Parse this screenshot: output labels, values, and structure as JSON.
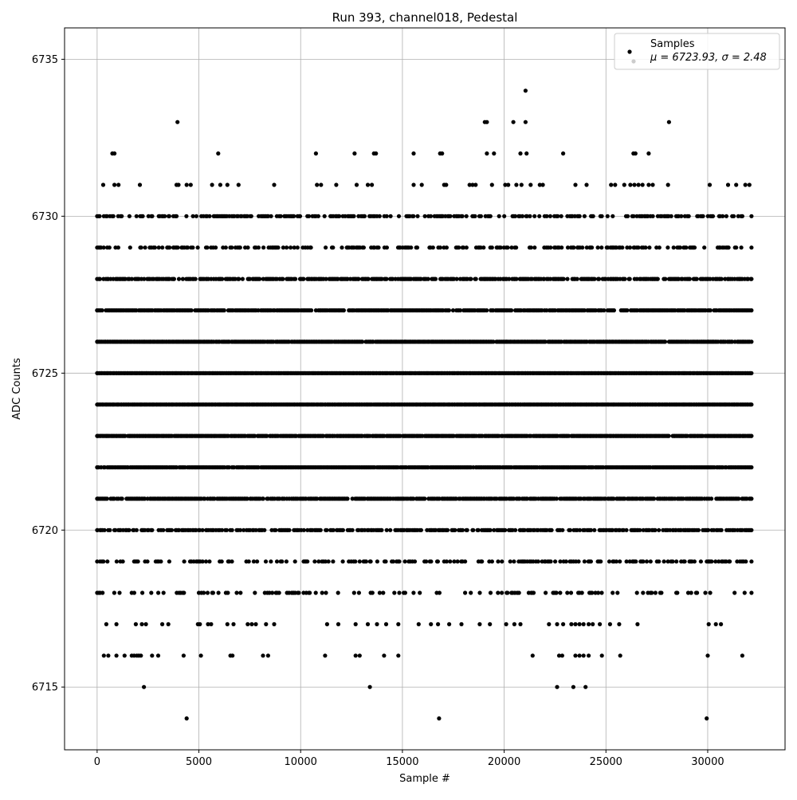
{
  "chart_data": {
    "type": "scatter",
    "title": "Run 393, channel018, Pedestal",
    "xlabel": "Sample #",
    "ylabel": "ADC Counts",
    "xlim": [
      -1600,
      33800
    ],
    "ylim": [
      6713,
      6736
    ],
    "xticks": [
      0,
      5000,
      10000,
      15000,
      20000,
      25000,
      30000
    ],
    "yticks": [
      6715,
      6720,
      6725,
      6730,
      6735
    ],
    "grid": true,
    "legend": {
      "placement": "top-right",
      "entries": [
        {
          "label": "Samples",
          "marker": "dot",
          "color": "#000000"
        },
        {
          "label": "μ = 6723.93, σ = 2.48",
          "marker": "dot",
          "color": "#cccccc"
        }
      ]
    },
    "series": [
      {
        "marker_color": "#000000",
        "x_range": [
          0,
          32150
        ],
        "levels": [
          {
            "y": 6714,
            "x": [
              4400,
              16800,
              29950
            ]
          },
          {
            "y": 6715,
            "x": [
              2300,
              13400,
              22600,
              23400,
              24000
            ]
          },
          {
            "y": 6716,
            "x": [
              330,
              550,
              950,
              1350,
              1700,
              1820,
              1950,
              2050,
              2150,
              2700,
              3000,
              4250,
              5100,
              6550,
              6650,
              8150,
              8400,
              11200,
              12700,
              12900,
              14100,
              14800,
              21400,
              22700,
              22850,
              23500,
              23700,
              23900,
              24150,
              24800,
              25700,
              30000,
              31700
            ]
          },
          {
            "y": 6717,
            "x": [
              450,
              950,
              1900,
              2200,
              2400,
              3200,
              3500,
              4950,
              5050,
              5450,
              5600,
              6400,
              6700,
              7400,
              7600,
              7800,
              8300,
              8700,
              11300,
              11850,
              12700,
              13300,
              13750,
              14200,
              14800,
              15800,
              16400,
              16750,
              17300,
              17900,
              18800,
              19300,
              20100,
              20500,
              20800,
              22200,
              22600,
              22900,
              23300,
              23500,
              23700,
              23900,
              24150,
              24350,
              24700,
              25200,
              25650,
              26550,
              30050,
              30400,
              30650
            ]
          },
          {
            "y": 6718,
            "pattern": "sparse",
            "density": 0.25
          },
          {
            "y": 6719,
            "pattern": "sparse",
            "density": 0.35
          },
          {
            "y": 6720,
            "pattern": "dense",
            "density": 0.6
          },
          {
            "y": 6721,
            "pattern": "dense",
            "density": 0.85
          },
          {
            "y": 6722,
            "pattern": "dense",
            "density": 0.95
          },
          {
            "y": 6723,
            "pattern": "dense",
            "density": 0.95
          },
          {
            "y": 6724,
            "pattern": "dense",
            "density": 1.0
          },
          {
            "y": 6725,
            "pattern": "dense",
            "density": 1.0
          },
          {
            "y": 6726,
            "pattern": "dense",
            "density": 0.95
          },
          {
            "y": 6727,
            "pattern": "dense",
            "density": 0.85
          },
          {
            "y": 6728,
            "pattern": "dense",
            "density": 0.7
          },
          {
            "y": 6729,
            "pattern": "sparse",
            "density": 0.4
          },
          {
            "y": 6730,
            "pattern": "sparse",
            "density": 0.45
          },
          {
            "y": 6731,
            "x": [
              300,
              850,
              1050,
              2100,
              3900,
              4000,
              4400,
              4600,
              5650,
              6050,
              6400,
              6950,
              8700,
              10800,
              11000,
              11750,
              12750,
              13300,
              13500,
              15550,
              15950,
              17050,
              17150,
              18300,
              18450,
              18600,
              19400,
              20050,
              20200,
              20600,
              20850,
              21300,
              21750,
              21900,
              23500,
              24050,
              25250,
              25450,
              25900,
              26200,
              26400,
              26600,
              26800,
              27100,
              27300,
              28050,
              30100,
              31000,
              31400,
              31850,
              32050
            ]
          },
          {
            "y": 6732,
            "x": [
              750,
              850,
              5950,
              10750,
              12650,
              13600,
              13700,
              15550,
              16850,
              16950,
              19150,
              19500,
              20800,
              21100,
              22900,
              26350,
              26450,
              27100
            ]
          },
          {
            "y": 6733,
            "x": [
              3950,
              19050,
              19150,
              20450,
              21050,
              28100
            ]
          },
          {
            "y": 6734,
            "x": [
              21050
            ]
          }
        ]
      }
    ]
  }
}
